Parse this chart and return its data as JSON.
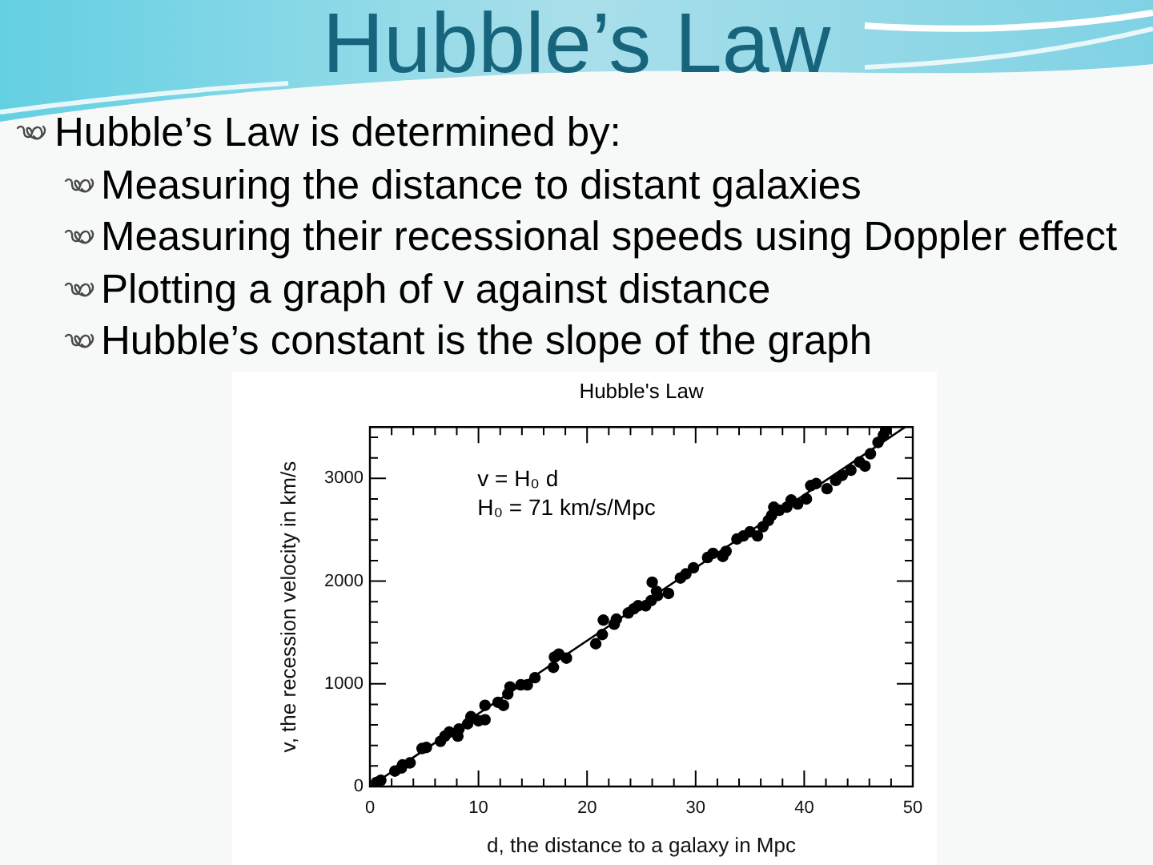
{
  "chart_data": {
    "type": "scatter",
    "title": "Hubble’s Law",
    "subtitle": "Hubble's Law",
    "xlabel": "d, the distance to a galaxy in Mpc",
    "ylabel": "v, the recession velocity in km/s",
    "annotations": [
      "Hubble’s Law is determined by:",
      "Measuring the distance to distant galaxies",
      "Measuring their recessional speeds using Doppler effect",
      "Plotting a graph of v against distance",
      "Hubble’s constant is the slope of the graph",
      "v = H₀ d",
      "H₀ = 71 km/s/Mpc"
    ],
    "xlim": [
      0,
      50
    ],
    "xticks": [
      0,
      {
        "value": 2,
        "label": null
      },
      {
        "value": 4,
        "label": null
      },
      {
        "value": 6,
        "label": null
      },
      {
        "value": 8,
        "label": null
      },
      10,
      {
        "value": 12,
        "label": null
      },
      {
        "value": 14,
        "label": null
      },
      {
        "value": 16,
        "label": null
      },
      {
        "value": 18,
        "label": null
      },
      20,
      {
        "value": 22,
        "label": null
      },
      {
        "value": 24,
        "label": null
      },
      {
        "value": 26,
        "label": null
      },
      {
        "value": 28,
        "label": null
      },
      30,
      {
        "value": 32,
        "label": null
      },
      {
        "value": 34,
        "label": null
      },
      {
        "value": 36,
        "label": null
      },
      {
        "value": 38,
        "label": null
      },
      40,
      {
        "value": 42,
        "label": null
      },
      {
        "value": 44,
        "label": null
      },
      {
        "value": 46,
        "label": null
      },
      {
        "value": 48,
        "label": null
      },
      50
    ],
    "ylim": [
      0,
      3500
    ],
    "yticks": [
      0,
      {
        "value": 200,
        "label": null
      },
      {
        "value": 400,
        "label": null
      },
      {
        "value": 600,
        "label": null
      },
      {
        "value": 800,
        "label": null
      },
      1000,
      {
        "value": 1200,
        "label": null
      },
      {
        "value": 1400,
        "label": null
      },
      {
        "value": 1600,
        "label": null
      },
      {
        "value": 1800,
        "label": null
      },
      2000,
      {
        "value": 2200,
        "label": null
      },
      {
        "value": 2400,
        "label": null
      },
      {
        "value": 2600,
        "label": null
      },
      {
        "value": 2800,
        "label": null
      },
      3000,
      {
        "value": 3200,
        "label": null
      },
      {
        "value": 3400,
        "label": null
      }
    ],
    "series": [
      {
        "color": "#000000",
        "marker": "circle",
        "x": [
          0.6,
          1.0,
          2.3,
          2.9,
          3.0,
          3.7,
          4.8,
          5.2,
          6.5,
          6.9,
          7.3,
          8.1,
          8.2,
          9.0,
          9.3,
          10.0,
          10.6,
          10.6,
          11.8,
          12.3,
          12.7,
          12.9,
          13.9,
          14.5,
          15.2,
          16.9,
          17.0,
          17.4,
          18.1,
          20.8,
          21.4,
          21.5,
          22.5,
          22.7,
          23.8,
          24.3,
          24.7,
          25.4,
          25.9,
          26.0,
          26.4,
          26.5,
          27.5,
          28.6,
          29.1,
          29.8,
          31.1,
          31.6,
          32.5,
          32.8,
          33.8,
          34.4,
          35.0,
          35.7,
          36.2,
          36.7,
          37.0,
          37.2,
          37.7,
          38.4,
          38.8,
          39.4,
          40.2,
          40.6,
          41.1,
          42.1,
          42.9,
          43.5,
          44.3,
          45.1,
          45.6,
          46.1,
          46.8,
          47.3,
          47.5
        ],
        "values": [
          40,
          60,
          150,
          180,
          210,
          230,
          370,
          380,
          440,
          490,
          530,
          490,
          560,
          610,
          680,
          640,
          790,
          650,
          820,
          790,
          900,
          970,
          990,
          990,
          1060,
          1160,
          1260,
          1290,
          1250,
          1390,
          1480,
          1620,
          1580,
          1630,
          1690,
          1730,
          1760,
          1760,
          1810,
          1990,
          1900,
          1860,
          1880,
          2030,
          2070,
          2130,
          2230,
          2270,
          2240,
          2290,
          2410,
          2440,
          2480,
          2440,
          2530,
          2590,
          2640,
          2720,
          2690,
          2720,
          2790,
          2750,
          2800,
          2930,
          2950,
          2900,
          2980,
          3030,
          3080,
          3160,
          3120,
          3240,
          3350,
          3420,
          3470
        ]
      },
      {
        "type": "line",
        "color": "#000000",
        "marker": "none",
        "x": [
          0,
          49.3
        ],
        "values": [
          0,
          3500
        ]
      }
    ]
  }
}
